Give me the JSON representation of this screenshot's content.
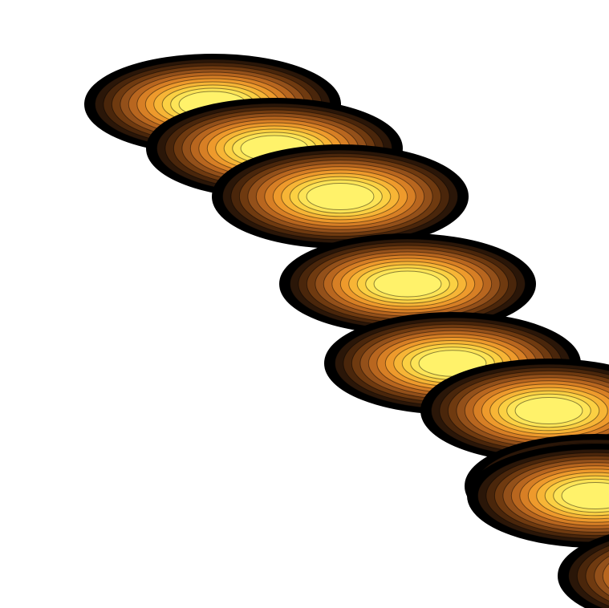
{
  "scene": {
    "description_label": "",
    "colors": {
      "background": "#ffffff",
      "outline": "#000000",
      "ring_gradient": [
        "#000000",
        "#2a1608",
        "#4a260b",
        "#6f3a10",
        "#93501a",
        "#b8661f",
        "#d77f25",
        "#ee9a2c",
        "#f7b536",
        "#fbd043",
        "#fde457",
        "#fff26a"
      ]
    },
    "blob_count": 9
  }
}
